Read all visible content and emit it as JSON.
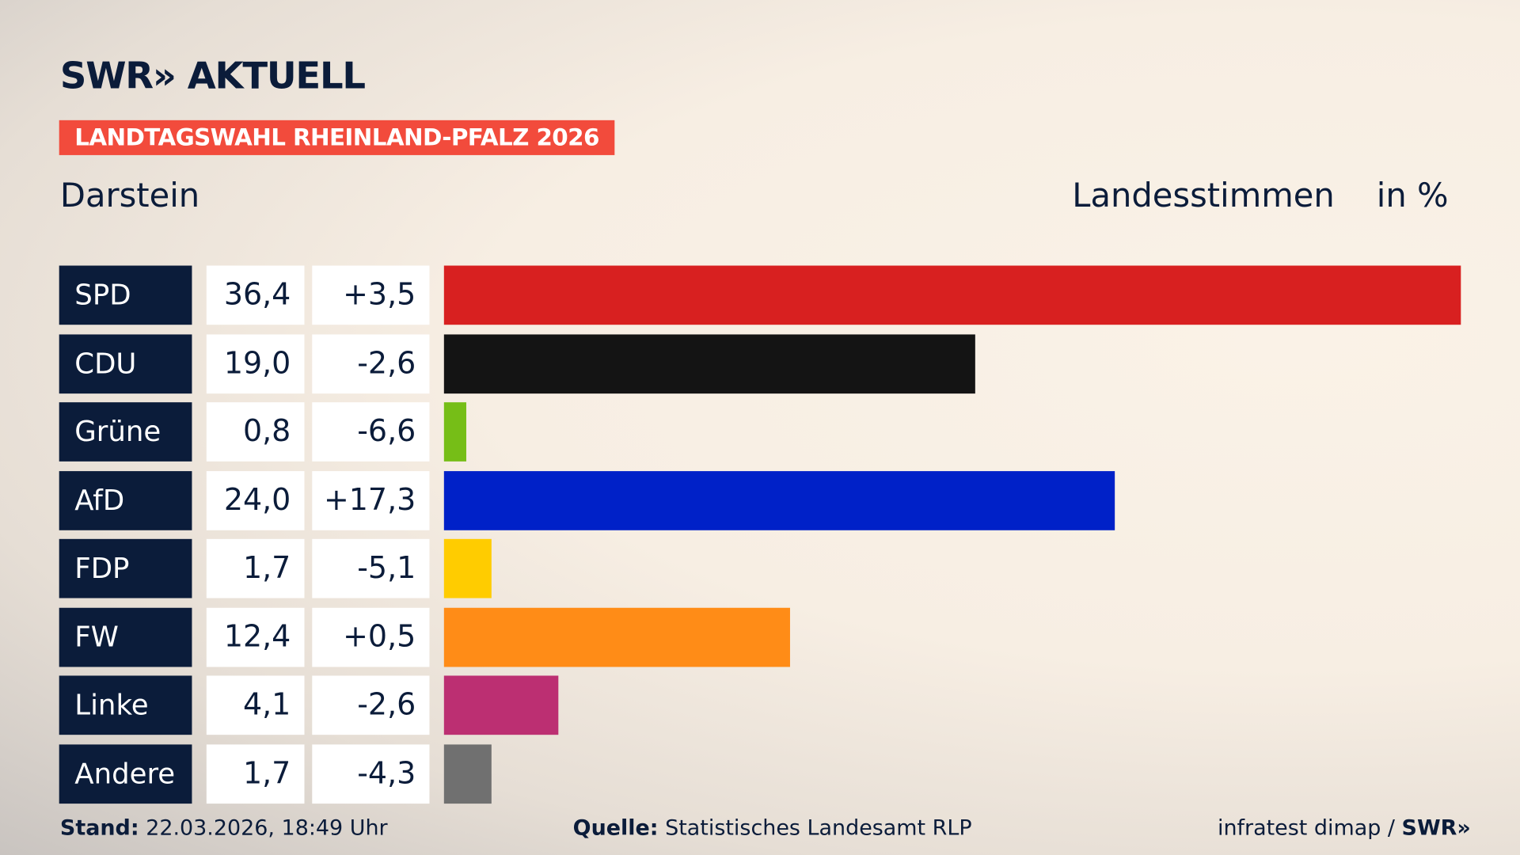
{
  "brand": {
    "logo": "SWR» AKTUELL",
    "footer_logo": "SWR»"
  },
  "tag": "LANDTAGSWAHL RHEINLAND-PFALZ 2026",
  "place": "Darstein",
  "header": {
    "vote_type": "Landesstimmen",
    "unit": "in %"
  },
  "footer": {
    "stand_label": "Stand:",
    "stand_value": "22.03.2026, 18:49 Uhr",
    "source_label": "Quelle:",
    "source_value": "Statistisches Landesamt RLP",
    "credit": "infratest dimap /"
  },
  "chart_data": {
    "type": "bar",
    "orientation": "horizontal",
    "categories": [
      "SPD",
      "CDU",
      "Grüne",
      "AfD",
      "FDP",
      "FW",
      "Linke",
      "Andere"
    ],
    "values": [
      36.4,
      19.0,
      0.8,
      24.0,
      1.7,
      12.4,
      4.1,
      1.7
    ],
    "value_labels": [
      "36,4",
      "19,0",
      "0,8",
      "24,0",
      "1,7",
      "12,4",
      "4,1",
      "1,7"
    ],
    "diffs": [
      "+3,5",
      "-2,6",
      "-6,6",
      "+17,3",
      "-5,1",
      "+0,5",
      "-2,6",
      "-4,3"
    ],
    "colors": [
      "#d82020",
      "#141414",
      "#76be17",
      "#0021c8",
      "#ffcc00",
      "#ff8c17",
      "#bc2f72",
      "#707070"
    ]
  }
}
